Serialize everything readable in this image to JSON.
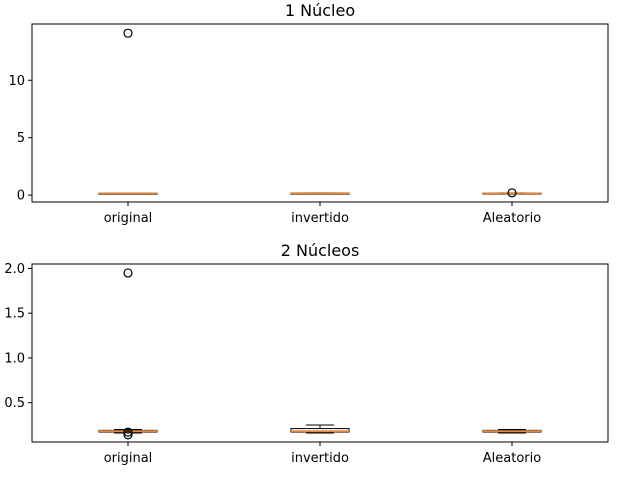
{
  "chart_data": [
    {
      "type": "box",
      "title": "1 Núcleo",
      "categories": [
        "original",
        "invertido",
        "Aleatorio"
      ],
      "ylim": [
        -0.6,
        14.9
      ],
      "yticks": [
        0,
        5,
        10
      ],
      "ytick_labels": [
        "0",
        "5",
        "10"
      ],
      "grid": false,
      "colors": {
        "box": "#000000",
        "median": "#e08a3c"
      },
      "boxes": [
        {
          "category": "original",
          "whislo": 0.1,
          "q1": 0.13,
          "med": 0.15,
          "q3": 0.16,
          "whishi": 0.18,
          "fliers": [
            14.1
          ]
        },
        {
          "category": "invertido",
          "whislo": 0.12,
          "q1": 0.14,
          "med": 0.16,
          "q3": 0.17,
          "whishi": 0.19,
          "fliers": []
        },
        {
          "category": "Aleatorio",
          "whislo": 0.11,
          "q1": 0.13,
          "med": 0.15,
          "q3": 0.17,
          "whishi": 0.19,
          "fliers": [
            0.2
          ]
        }
      ]
    },
    {
      "type": "box",
      "title": "2 Núcleos",
      "categories": [
        "original",
        "invertido",
        "Aleatorio"
      ],
      "ylim": [
        0.06,
        2.05
      ],
      "yticks": [
        0.5,
        1.0,
        1.5,
        2.0
      ],
      "ytick_labels": [
        "0.5",
        "1.0",
        "1.5",
        "2.0"
      ],
      "grid": false,
      "colors": {
        "box": "#000000",
        "median": "#e08a3c"
      },
      "boxes": [
        {
          "category": "original",
          "whislo": 0.16,
          "q1": 0.17,
          "med": 0.18,
          "q3": 0.19,
          "whishi": 0.2,
          "fliers": [
            1.95,
            0.17,
            0.14
          ]
        },
        {
          "category": "invertido",
          "whislo": 0.16,
          "q1": 0.17,
          "med": 0.18,
          "q3": 0.21,
          "whishi": 0.25,
          "fliers": []
        },
        {
          "category": "Aleatorio",
          "whislo": 0.16,
          "q1": 0.17,
          "med": 0.18,
          "q3": 0.19,
          "whishi": 0.2,
          "fliers": []
        }
      ]
    }
  ]
}
